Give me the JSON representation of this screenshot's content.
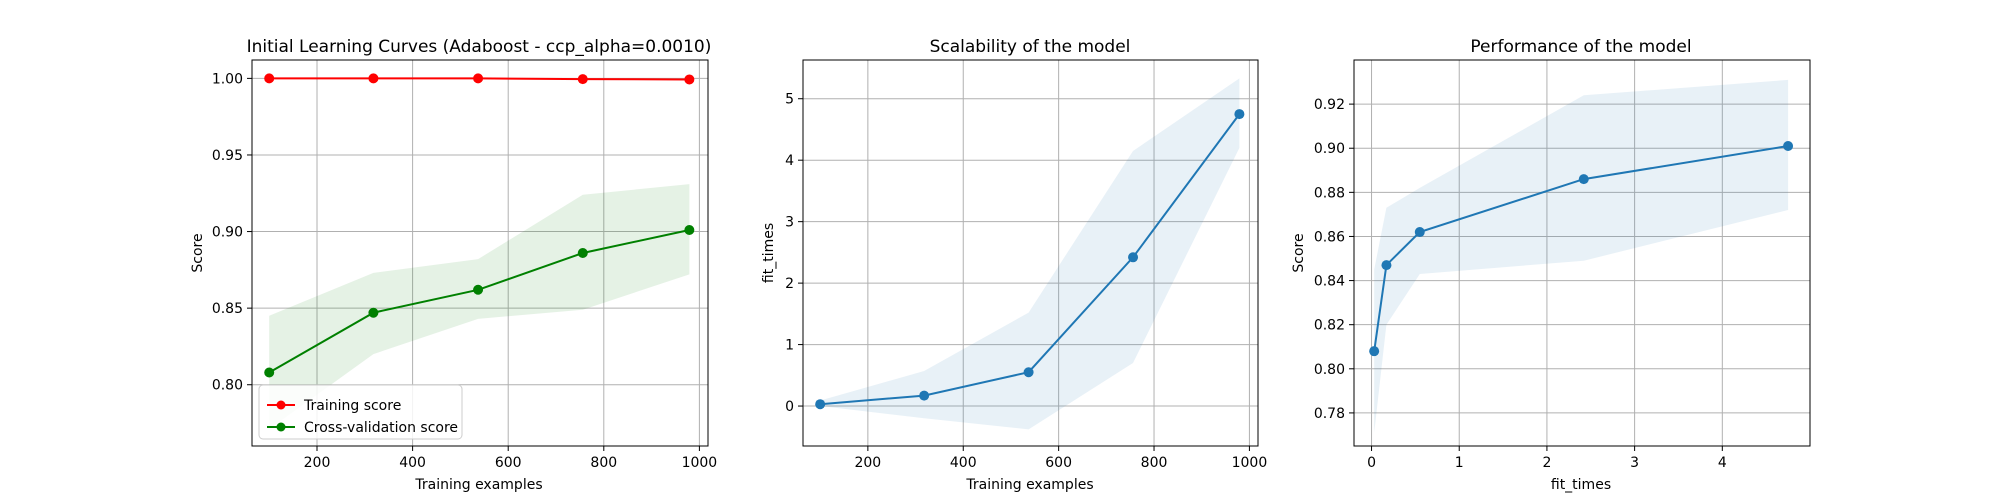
{
  "chart_data": [
    {
      "type": "line",
      "title": "Initial Learning Curves (Adaboost - ccp_alpha=0.0010)",
      "xlabel": "Training examples",
      "ylabel": "Score",
      "xlim": [
        64,
        1018
      ],
      "ylim": [
        0.76,
        1.012
      ],
      "xticks": [
        200,
        400,
        600,
        800,
        1000
      ],
      "xtick_labels": [
        "200",
        "400",
        "600",
        "800",
        "1000"
      ],
      "yticks": [
        0.8,
        0.85,
        0.9,
        0.95,
        1.0
      ],
      "ytick_labels": [
        "0.80",
        "0.85",
        "0.90",
        "0.95",
        "1.00"
      ],
      "grid": true,
      "legend": "lower-left",
      "x": [
        100,
        318,
        537,
        756,
        979
      ],
      "series": [
        {
          "name": "Training score",
          "color": "#ff0000",
          "values": [
            1.0,
            1.0,
            1.0,
            0.9995,
            0.9993
          ],
          "band_low": [
            1.0,
            1.0,
            1.0,
            0.9992,
            0.999
          ],
          "band_high": [
            1.0,
            1.0,
            1.0,
            0.9998,
            0.9996
          ]
        },
        {
          "name": "Cross-validation score",
          "color": "#008000",
          "values": [
            0.808,
            0.847,
            0.862,
            0.886,
            0.901
          ],
          "band_low": [
            0.771,
            0.82,
            0.843,
            0.849,
            0.872
          ],
          "band_high": [
            0.845,
            0.873,
            0.882,
            0.924,
            0.931
          ]
        }
      ]
    },
    {
      "type": "line",
      "title": "Scalability of the model",
      "xlabel": "Training examples",
      "ylabel": "fit_times",
      "xlim": [
        64,
        1018
      ],
      "ylim": [
        -0.65,
        5.63
      ],
      "xticks": [
        200,
        400,
        600,
        800,
        1000
      ],
      "xtick_labels": [
        "200",
        "400",
        "600",
        "800",
        "1000"
      ],
      "yticks": [
        0,
        1,
        2,
        3,
        4,
        5
      ],
      "ytick_labels": [
        "0",
        "1",
        "2",
        "3",
        "4",
        "5"
      ],
      "grid": true,
      "x": [
        100,
        318,
        537,
        756,
        979
      ],
      "series": [
        {
          "color": "#1f77b4",
          "values": [
            0.03,
            0.17,
            0.55,
            2.42,
            4.75
          ],
          "band_low": [
            0.0,
            -0.2,
            -0.38,
            0.7,
            4.2
          ],
          "band_high": [
            0.09,
            0.57,
            1.52,
            4.15,
            5.33
          ]
        }
      ]
    },
    {
      "type": "line",
      "title": "Performance of the model",
      "xlabel": "fit_times",
      "ylabel": "Score",
      "xlim": [
        -0.2,
        5.0
      ],
      "ylim": [
        0.765,
        0.94
      ],
      "xticks": [
        0,
        1,
        2,
        3,
        4
      ],
      "xtick_labels": [
        "0",
        "1",
        "2",
        "3",
        "4"
      ],
      "yticks": [
        0.78,
        0.8,
        0.82,
        0.84,
        0.86,
        0.88,
        0.9,
        0.92
      ],
      "ytick_labels": [
        "0.78",
        "0.80",
        "0.82",
        "0.84",
        "0.86",
        "0.88",
        "0.90",
        "0.92"
      ],
      "grid": true,
      "x": [
        0.03,
        0.17,
        0.55,
        2.42,
        4.75
      ],
      "series": [
        {
          "color": "#1f77b4",
          "values": [
            0.808,
            0.847,
            0.862,
            0.886,
            0.901
          ],
          "band_low": [
            0.771,
            0.82,
            0.843,
            0.849,
            0.872
          ],
          "band_high": [
            0.845,
            0.873,
            0.882,
            0.924,
            0.931
          ]
        }
      ]
    }
  ]
}
